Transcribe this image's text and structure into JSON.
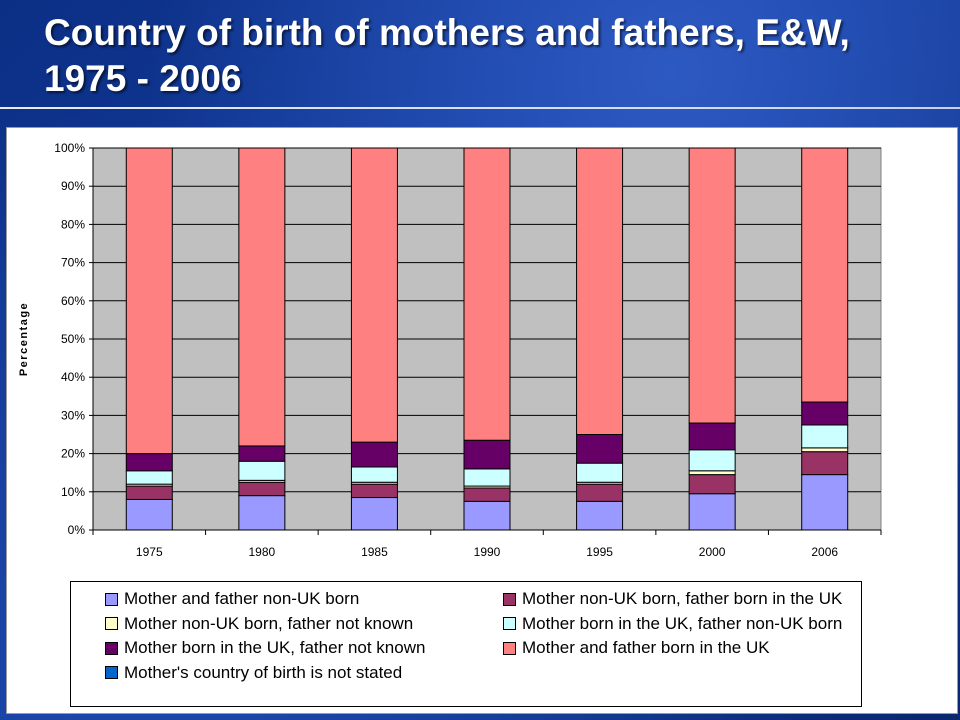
{
  "slide": {
    "title": "Country of birth of mothers and fathers, E&W, 1975 - 2006"
  },
  "chart_data": {
    "type": "bar",
    "stacked": true,
    "percent_stacked": true,
    "categories": [
      "1975",
      "1980",
      "1985",
      "1990",
      "1995",
      "2000",
      "2006"
    ],
    "ylabel": "Percentage",
    "ylim": [
      0,
      100
    ],
    "yticks": [
      "0%",
      "10%",
      "20%",
      "30%",
      "40%",
      "50%",
      "60%",
      "70%",
      "80%",
      "90%",
      "100%"
    ],
    "grid": true,
    "legend_position": "bottom",
    "plot_background": "#c0c0c0",
    "series": [
      {
        "name": "Mother and father non-UK born",
        "color": "#9999ff",
        "values": [
          8,
          9,
          8.5,
          7.5,
          7.5,
          9.5,
          14.5
        ]
      },
      {
        "name": "Mother non-UK born, father born in the UK",
        "color": "#993366",
        "values": [
          3.5,
          3.5,
          3.5,
          3.5,
          4.5,
          5,
          6
        ]
      },
      {
        "name": "Mother non-UK born, father not known",
        "color": "#ffffcc",
        "values": [
          0.5,
          0.5,
          0.5,
          0.5,
          0.5,
          1,
          1
        ]
      },
      {
        "name": "Mother born in the UK, father non-UK born",
        "color": "#ccffff",
        "values": [
          3.5,
          5,
          4,
          4.5,
          5,
          5.5,
          6
        ]
      },
      {
        "name": "Mother born in the UK, father not known",
        "color": "#660066",
        "values": [
          4.5,
          4,
          6.5,
          7.5,
          7.5,
          7,
          6
        ]
      },
      {
        "name": "Mother and father born in the UK",
        "color": "#ff8080",
        "values": [
          80,
          78,
          77,
          76.5,
          75,
          72,
          66.5
        ]
      },
      {
        "name": "Mother's country of birth is not stated",
        "color": "#0066cc",
        "values": [
          0,
          0,
          0,
          0,
          0,
          0,
          0
        ]
      }
    ]
  }
}
